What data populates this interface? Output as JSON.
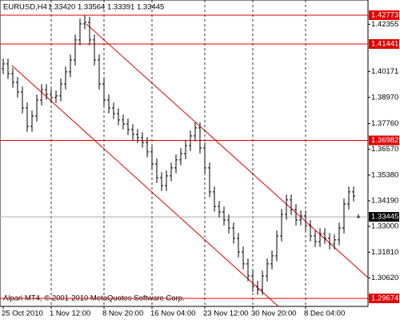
{
  "chart_data": {
    "type": "ohlc",
    "title": "EURUSD,H4",
    "ohlc_labels": [
      "1.33420",
      "1.33564",
      "1.33391",
      "1.33445"
    ],
    "annotation": "Alpari MT4, © 2001-2010 MetaQuotes Software Corp.",
    "categories": [
      "25 Oct 2010",
      null,
      null,
      null,
      null,
      null,
      null,
      null,
      null,
      null,
      "1 Nov 12:00",
      null,
      null,
      null,
      null,
      null,
      null,
      null,
      null,
      null,
      null,
      "8 Nov 20:00",
      null,
      null,
      null,
      null,
      null,
      null,
      null,
      null,
      null,
      "16 Nov 04:00",
      null,
      null,
      null,
      null,
      null,
      null,
      null,
      null,
      null,
      null,
      "23 Nov 12:00",
      null,
      null,
      null,
      null,
      null,
      null,
      null,
      null,
      null,
      "30 Nov 20:00",
      null,
      null,
      null,
      null,
      null,
      null,
      null,
      null,
      null,
      null,
      "8 Dec 04:00",
      null,
      null,
      null,
      null,
      null,
      null,
      null,
      null,
      null,
      null,
      null
    ],
    "open": [
      1.403,
      1.4052,
      1.4007,
      1.3967,
      1.3922,
      1.3848,
      1.3763,
      1.3811,
      1.3885,
      1.3933,
      1.3911,
      1.3896,
      1.3904,
      1.3959,
      1.4015,
      1.407,
      1.4163,
      1.4237,
      1.4244,
      1.4163,
      1.407,
      1.3959,
      1.3885,
      1.3848,
      1.3822,
      1.3793,
      1.3774,
      1.3748,
      1.3726,
      1.3711,
      1.3689,
      1.3645,
      1.3589,
      1.3526,
      1.3489,
      1.3534,
      1.3571,
      1.3608,
      1.3637,
      1.3674,
      1.3719,
      1.3756,
      1.3663,
      1.3571,
      1.346,
      1.3393,
      1.3367,
      1.333,
      1.3293,
      1.3245,
      1.3182,
      1.3127,
      1.3071,
      1.3023,
      1.3008,
      1.3071,
      1.3127,
      1.3164,
      1.3256,
      1.3356,
      1.3423,
      1.3378,
      1.333,
      1.3349,
      1.3304,
      1.3256,
      1.323,
      1.3267,
      1.3245,
      1.3219,
      1.3238,
      1.3293,
      1.3404,
      1.346,
      1.3342
    ],
    "high": [
      1.4077,
      1.4077,
      1.4032,
      1.3992,
      1.3947,
      1.3873,
      1.3836,
      1.391,
      1.3958,
      1.3958,
      1.3936,
      1.3929,
      1.3984,
      1.404,
      1.4095,
      1.4188,
      1.4262,
      1.4277,
      1.4269,
      1.4188,
      1.4095,
      1.3984,
      1.391,
      1.3873,
      1.3847,
      1.3818,
      1.3799,
      1.3773,
      1.3751,
      1.3736,
      1.3714,
      1.367,
      1.3614,
      1.3551,
      1.3559,
      1.3596,
      1.3633,
      1.3662,
      1.3699,
      1.3744,
      1.3781,
      1.3781,
      1.3688,
      1.3596,
      1.3485,
      1.3418,
      1.3392,
      1.3355,
      1.3318,
      1.327,
      1.3207,
      1.3152,
      1.3096,
      1.3048,
      1.3096,
      1.3152,
      1.3189,
      1.3281,
      1.3381,
      1.3448,
      1.3448,
      1.3403,
      1.3374,
      1.3374,
      1.3329,
      1.3281,
      1.3292,
      1.3292,
      1.327,
      1.3263,
      1.3318,
      1.3429,
      1.3485,
      1.3485,
      1.33564
    ],
    "low": [
      1.4005,
      1.3982,
      1.3942,
      1.3897,
      1.3823,
      1.3738,
      1.3738,
      1.3786,
      1.386,
      1.3886,
      1.3871,
      1.3871,
      1.3879,
      1.3934,
      1.399,
      1.4045,
      1.4138,
      1.4212,
      1.4138,
      1.4045,
      1.3934,
      1.386,
      1.3823,
      1.3797,
      1.3768,
      1.3749,
      1.3723,
      1.3701,
      1.3686,
      1.3664,
      1.362,
      1.3564,
      1.3501,
      1.3464,
      1.3464,
      1.3509,
      1.3546,
      1.3583,
      1.3612,
      1.3649,
      1.3694,
      1.3638,
      1.3546,
      1.3435,
      1.3368,
      1.3342,
      1.3305,
      1.3268,
      1.322,
      1.3157,
      1.3102,
      1.3046,
      1.2998,
      1.2983,
      1.2983,
      1.3046,
      1.3102,
      1.3139,
      1.3231,
      1.3331,
      1.3353,
      1.3305,
      1.3305,
      1.3279,
      1.3231,
      1.3205,
      1.3205,
      1.322,
      1.3194,
      1.3194,
      1.3213,
      1.3268,
      1.3379,
      1.3416,
      1.33391
    ],
    "close": [
      1.4052,
      1.4007,
      1.3967,
      1.3922,
      1.3848,
      1.3763,
      1.3811,
      1.3885,
      1.3933,
      1.3911,
      1.3896,
      1.3904,
      1.3959,
      1.4015,
      1.407,
      1.4163,
      1.4237,
      1.4244,
      1.4163,
      1.407,
      1.3959,
      1.3885,
      1.3848,
      1.3822,
      1.3793,
      1.3774,
      1.3748,
      1.3726,
      1.3711,
      1.3689,
      1.3645,
      1.3589,
      1.3526,
      1.3489,
      1.3534,
      1.3571,
      1.3608,
      1.3637,
      1.3674,
      1.3719,
      1.3756,
      1.3663,
      1.3571,
      1.346,
      1.3393,
      1.3367,
      1.333,
      1.3293,
      1.3245,
      1.3182,
      1.3127,
      1.3071,
      1.3023,
      1.3008,
      1.3071,
      1.3127,
      1.3164,
      1.3256,
      1.3356,
      1.3423,
      1.3378,
      1.333,
      1.3349,
      1.3304,
      1.3256,
      1.323,
      1.3267,
      1.3245,
      1.3219,
      1.3238,
      1.3293,
      1.3404,
      1.346,
      1.3441,
      1.33445
    ],
    "color": "#000000",
    "ylim": [
      1.29304,
      1.43476
    ],
    "yticks": [
      1.42355,
      1.40171,
      {
        "value": 1.3897,
        "label": "1.38970"
      },
      {
        "value": 1.3776,
        "label": "1.37760"
      },
      {
        "value": 1.3657,
        "label": "1.36570"
      },
      {
        "value": 1.3538,
        "label": "1.35380"
      },
      {
        "value": 1.3419,
        "label": "1.34190"
      },
      {
        "value": 1.33,
        "label": "1.33000"
      },
      {
        "value": 1.3181,
        "label": "1.31810"
      },
      {
        "value": 1.3062,
        "label": "1.30620"
      }
    ],
    "hlines": [
      1.42773,
      1.41441,
      1.36982,
      1.29674
    ],
    "hline_color": "#e00000",
    "current_price": 1.33445,
    "grid": true
  }
}
